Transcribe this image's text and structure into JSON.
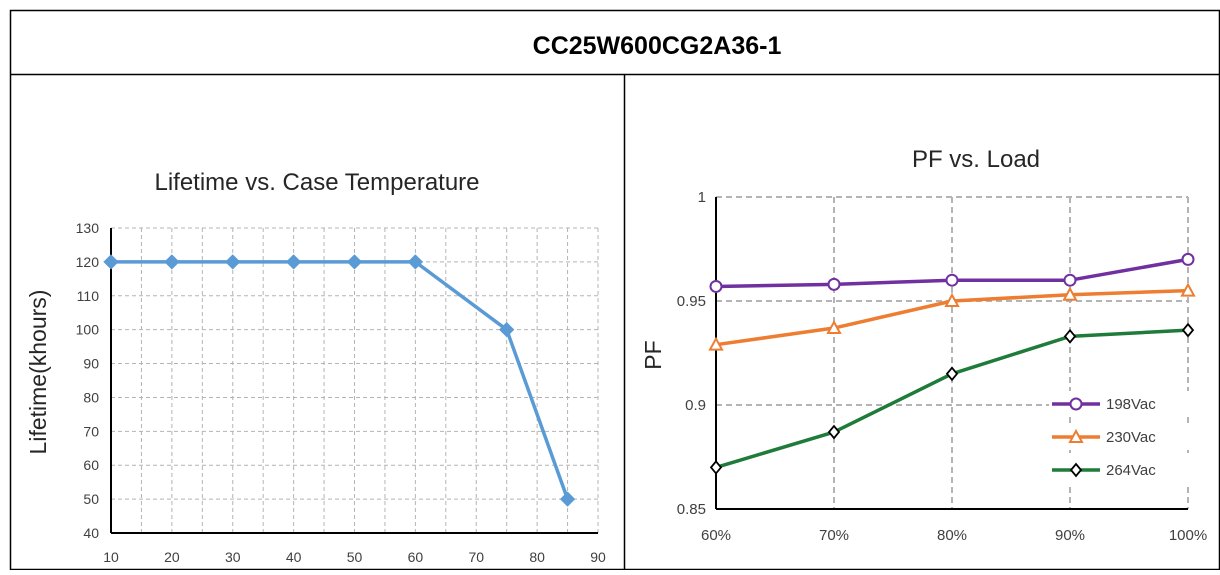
{
  "header": {
    "title": "CC25W600CG2A36-1"
  },
  "colors": {
    "lifetime_line": "#5b9bd5",
    "series_198": "#7030a0",
    "series_230": "#ed7d31",
    "series_264": "#1e7b3a",
    "grid": "#b4b4b4",
    "frame": "#000000"
  },
  "chart_data": [
    {
      "type": "line",
      "title": "Lifetime vs. Case Temperature",
      "xlabel": "",
      "ylabel": "Lifetime(khours)",
      "xlim": [
        10,
        90
      ],
      "ylim": [
        40,
        130
      ],
      "x_ticks": [
        10,
        20,
        30,
        40,
        50,
        60,
        70,
        80,
        90
      ],
      "y_ticks": [
        40,
        50,
        60,
        70,
        80,
        90,
        100,
        110,
        120,
        130
      ],
      "grid": true,
      "marker": "diamond",
      "series": [
        {
          "x": [
            10,
            20,
            30,
            40,
            50,
            60,
            75,
            85
          ],
          "y": [
            120,
            120,
            120,
            120,
            120,
            120,
            100,
            50
          ]
        }
      ]
    },
    {
      "type": "line",
      "title": "PF vs. Load",
      "xlabel": "",
      "ylabel": "PF",
      "categories": [
        "60%",
        "70%",
        "80%",
        "90%",
        "100%"
      ],
      "ylim": [
        0.85,
        1
      ],
      "y_ticks": [
        0.85,
        0.9,
        0.95,
        1
      ],
      "y_tick_labels": [
        "0.85",
        "0.9",
        "0.95",
        "1"
      ],
      "grid": true,
      "legend": "bottom-right",
      "series": [
        {
          "name": "198Vac",
          "values": [
            0.957,
            0.958,
            0.96,
            0.96,
            0.97
          ],
          "marker": "circle"
        },
        {
          "name": "230Vac",
          "values": [
            0.929,
            0.937,
            0.95,
            0.953,
            0.955
          ],
          "marker": "triangle"
        },
        {
          "name": "264Vac",
          "values": [
            0.87,
            0.887,
            0.915,
            0.933,
            0.936
          ],
          "marker": "diamond"
        }
      ]
    }
  ]
}
